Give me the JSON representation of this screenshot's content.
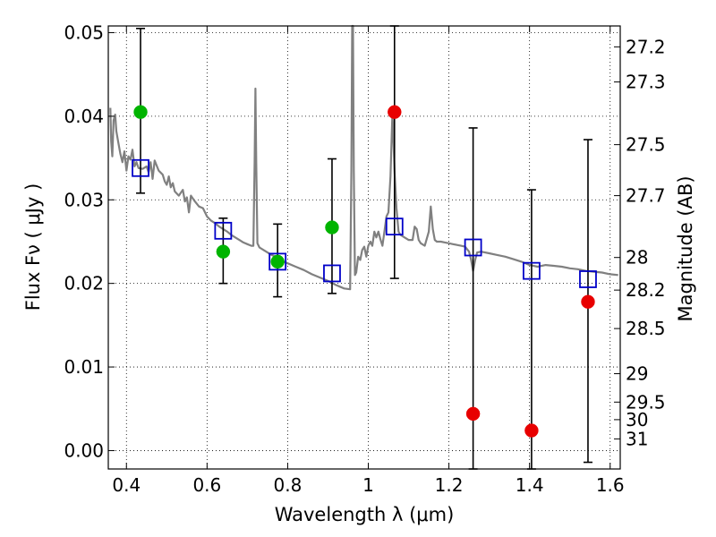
{
  "chart_data": {
    "type": "scatter",
    "xlabel": "Wavelength  λ (μm)",
    "ylabel": "Flux  Fν  ( μJy )",
    "y2label": "Magnitude (AB)",
    "xlim": [
      0.355,
      1.625
    ],
    "ylim": [
      -0.0022,
      0.0508
    ],
    "grid": true,
    "x_ticks": [
      0.4,
      0.6,
      0.8,
      1.0,
      1.2,
      1.4,
      1.6
    ],
    "x_tick_labels": [
      "0.4",
      "0.6",
      "0.8",
      "1",
      "1.2",
      "1.4",
      "1.6"
    ],
    "y_ticks": [
      0.0,
      0.01,
      0.02,
      0.03,
      0.04,
      0.05
    ],
    "y_tick_labels": [
      "0.00",
      "0.01",
      "0.02",
      "0.03",
      "0.04",
      "0.05"
    ],
    "y2_ticks": [
      {
        "label": "27.2",
        "flux": 0.0483
      },
      {
        "label": "27.3",
        "flux": 0.0441
      },
      {
        "label": "27.5",
        "flux": 0.0366
      },
      {
        "label": "27.7",
        "flux": 0.0305
      },
      {
        "label": "28",
        "flux": 0.0231
      },
      {
        "label": "28.2",
        "flux": 0.0192
      },
      {
        "label": "28.5",
        "flux": 0.0146
      },
      {
        "label": "29",
        "flux": 0.0092
      },
      {
        "label": "29.5",
        "flux": 0.0058
      },
      {
        "label": "30",
        "flux": 0.0037
      },
      {
        "label": "31",
        "flux": 0.0014
      }
    ],
    "model_sed": {
      "color": "#808080",
      "points": [
        [
          0.36,
          0.041
        ],
        [
          0.362,
          0.037
        ],
        [
          0.365,
          0.0352
        ],
        [
          0.368,
          0.0395
        ],
        [
          0.372,
          0.0402
        ],
        [
          0.375,
          0.0382
        ],
        [
          0.38,
          0.0368
        ],
        [
          0.385,
          0.0355
        ],
        [
          0.39,
          0.0345
        ],
        [
          0.395,
          0.0358
        ],
        [
          0.4,
          0.0335
        ],
        [
          0.405,
          0.0352
        ],
        [
          0.41,
          0.0348
        ],
        [
          0.415,
          0.036
        ],
        [
          0.42,
          0.034
        ],
        [
          0.425,
          0.0345
        ],
        [
          0.43,
          0.0338
        ],
        [
          0.44,
          0.0337
        ],
        [
          0.45,
          0.034
        ],
        [
          0.455,
          0.0333
        ],
        [
          0.46,
          0.0345
        ],
        [
          0.465,
          0.0325
        ],
        [
          0.47,
          0.0347
        ],
        [
          0.48,
          0.0335
        ],
        [
          0.49,
          0.033
        ],
        [
          0.495,
          0.0322
        ],
        [
          0.5,
          0.0318
        ],
        [
          0.505,
          0.0328
        ],
        [
          0.51,
          0.0315
        ],
        [
          0.515,
          0.032
        ],
        [
          0.52,
          0.031
        ],
        [
          0.53,
          0.0305
        ],
        [
          0.54,
          0.0312
        ],
        [
          0.545,
          0.0298
        ],
        [
          0.55,
          0.0303
        ],
        [
          0.555,
          0.0285
        ],
        [
          0.56,
          0.0305
        ],
        [
          0.57,
          0.0298
        ],
        [
          0.58,
          0.0292
        ],
        [
          0.59,
          0.029
        ],
        [
          0.6,
          0.028
        ],
        [
          0.61,
          0.0275
        ],
        [
          0.62,
          0.0272
        ],
        [
          0.63,
          0.0268
        ],
        [
          0.64,
          0.0265
        ],
        [
          0.65,
          0.0262
        ],
        [
          0.66,
          0.0258
        ],
        [
          0.67,
          0.0255
        ],
        [
          0.68,
          0.0252
        ],
        [
          0.69,
          0.0249
        ],
        [
          0.7,
          0.0247
        ],
        [
          0.71,
          0.0245
        ],
        [
          0.715,
          0.0245
        ],
        [
          0.718,
          0.0345
        ],
        [
          0.72,
          0.0433
        ],
        [
          0.722,
          0.0345
        ],
        [
          0.725,
          0.0248
        ],
        [
          0.73,
          0.0243
        ],
        [
          0.74,
          0.024
        ],
        [
          0.75,
          0.0237
        ],
        [
          0.76,
          0.0234
        ],
        [
          0.77,
          0.0232
        ],
        [
          0.78,
          0.0229
        ],
        [
          0.79,
          0.0226
        ],
        [
          0.8,
          0.0224
        ],
        [
          0.82,
          0.022
        ],
        [
          0.84,
          0.0216
        ],
        [
          0.86,
          0.0211
        ],
        [
          0.88,
          0.0207
        ],
        [
          0.9,
          0.0203
        ],
        [
          0.92,
          0.0198
        ],
        [
          0.94,
          0.0194
        ],
        [
          0.955,
          0.0193
        ],
        [
          0.958,
          0.0335
        ],
        [
          0.96,
          0.0508
        ],
        [
          0.962,
          0.0508
        ],
        [
          0.964,
          0.0335
        ],
        [
          0.967,
          0.021
        ],
        [
          0.97,
          0.0213
        ],
        [
          0.975,
          0.0232
        ],
        [
          0.98,
          0.0228
        ],
        [
          0.985,
          0.024
        ],
        [
          0.99,
          0.0244
        ],
        [
          0.995,
          0.0232
        ],
        [
          1.0,
          0.0245
        ],
        [
          1.005,
          0.025
        ],
        [
          1.01,
          0.0245
        ],
        [
          1.015,
          0.0262
        ],
        [
          1.02,
          0.0255
        ],
        [
          1.025,
          0.0262
        ],
        [
          1.03,
          0.0253
        ],
        [
          1.035,
          0.0245
        ],
        [
          1.04,
          0.0262
        ],
        [
          1.045,
          0.028
        ],
        [
          1.05,
          0.0285
        ],
        [
          1.055,
          0.0328
        ],
        [
          1.06,
          0.0405
        ],
        [
          1.065,
          0.0335
        ],
        [
          1.07,
          0.029
        ],
        [
          1.075,
          0.0262
        ],
        [
          1.08,
          0.0258
        ],
        [
          1.09,
          0.0255
        ],
        [
          1.1,
          0.0252
        ],
        [
          1.11,
          0.0252
        ],
        [
          1.115,
          0.0268
        ],
        [
          1.12,
          0.0265
        ],
        [
          1.125,
          0.0252
        ],
        [
          1.13,
          0.0248
        ],
        [
          1.14,
          0.0245
        ],
        [
          1.15,
          0.0262
        ],
        [
          1.155,
          0.0292
        ],
        [
          1.16,
          0.0265
        ],
        [
          1.165,
          0.0252
        ],
        [
          1.17,
          0.025
        ],
        [
          1.18,
          0.025
        ],
        [
          1.19,
          0.0249
        ],
        [
          1.2,
          0.0248
        ],
        [
          1.21,
          0.0247
        ],
        [
          1.22,
          0.0246
        ],
        [
          1.23,
          0.0245
        ],
        [
          1.24,
          0.0244
        ],
        [
          1.25,
          0.0238
        ],
        [
          1.255,
          0.0228
        ],
        [
          1.26,
          0.0215
        ],
        [
          1.265,
          0.0228
        ],
        [
          1.27,
          0.0237
        ],
        [
          1.28,
          0.0238
        ],
        [
          1.3,
          0.0236
        ],
        [
          1.32,
          0.0234
        ],
        [
          1.34,
          0.0232
        ],
        [
          1.36,
          0.0229
        ],
        [
          1.38,
          0.0226
        ],
        [
          1.4,
          0.0222
        ],
        [
          1.42,
          0.022
        ],
        [
          1.44,
          0.0222
        ],
        [
          1.46,
          0.0221
        ],
        [
          1.48,
          0.022
        ],
        [
          1.5,
          0.0218
        ],
        [
          1.52,
          0.0217
        ],
        [
          1.54,
          0.0215
        ],
        [
          1.56,
          0.0214
        ],
        [
          1.58,
          0.0213
        ],
        [
          1.6,
          0.0211
        ],
        [
          1.62,
          0.021
        ]
      ]
    },
    "model_points": {
      "marker": "open-square",
      "color": "#0000c8",
      "points": [
        {
          "x": 0.435,
          "y": 0.0338
        },
        {
          "x": 0.64,
          "y": 0.0263
        },
        {
          "x": 0.775,
          "y": 0.0226
        },
        {
          "x": 0.91,
          "y": 0.0212
        },
        {
          "x": 1.065,
          "y": 0.0268
        },
        {
          "x": 1.26,
          "y": 0.0243
        },
        {
          "x": 1.405,
          "y": 0.0215
        },
        {
          "x": 1.545,
          "y": 0.0205
        }
      ]
    },
    "observed": {
      "marker": "filled-circle",
      "points": [
        {
          "x": 0.435,
          "y": 0.0405,
          "ylow": 0.0308,
          "yhigh": 0.0505,
          "color": "#00b400"
        },
        {
          "x": 0.64,
          "y": 0.0238,
          "ylow": 0.02,
          "yhigh": 0.0278,
          "color": "#00b400"
        },
        {
          "x": 0.775,
          "y": 0.0226,
          "ylow": 0.0184,
          "yhigh": 0.0271,
          "color": "#00b400"
        },
        {
          "x": 0.91,
          "y": 0.0267,
          "ylow": 0.0188,
          "yhigh": 0.0349,
          "color": "#00b400"
        },
        {
          "x": 1.065,
          "y": 0.0405,
          "ylow": 0.0206,
          "yhigh": 0.0508,
          "color": "#e80000"
        },
        {
          "x": 1.26,
          "y": 0.0044,
          "ylow": -0.0022,
          "yhigh": 0.0386,
          "color": "#e80000"
        },
        {
          "x": 1.405,
          "y": 0.0024,
          "ylow": -0.0022,
          "yhigh": 0.0312,
          "color": "#e80000"
        },
        {
          "x": 1.545,
          "y": 0.0178,
          "ylow": -0.0014,
          "yhigh": 0.0372,
          "color": "#e80000"
        }
      ]
    },
    "colors": {
      "grid": "#000000",
      "errorbar": "#000000"
    }
  }
}
